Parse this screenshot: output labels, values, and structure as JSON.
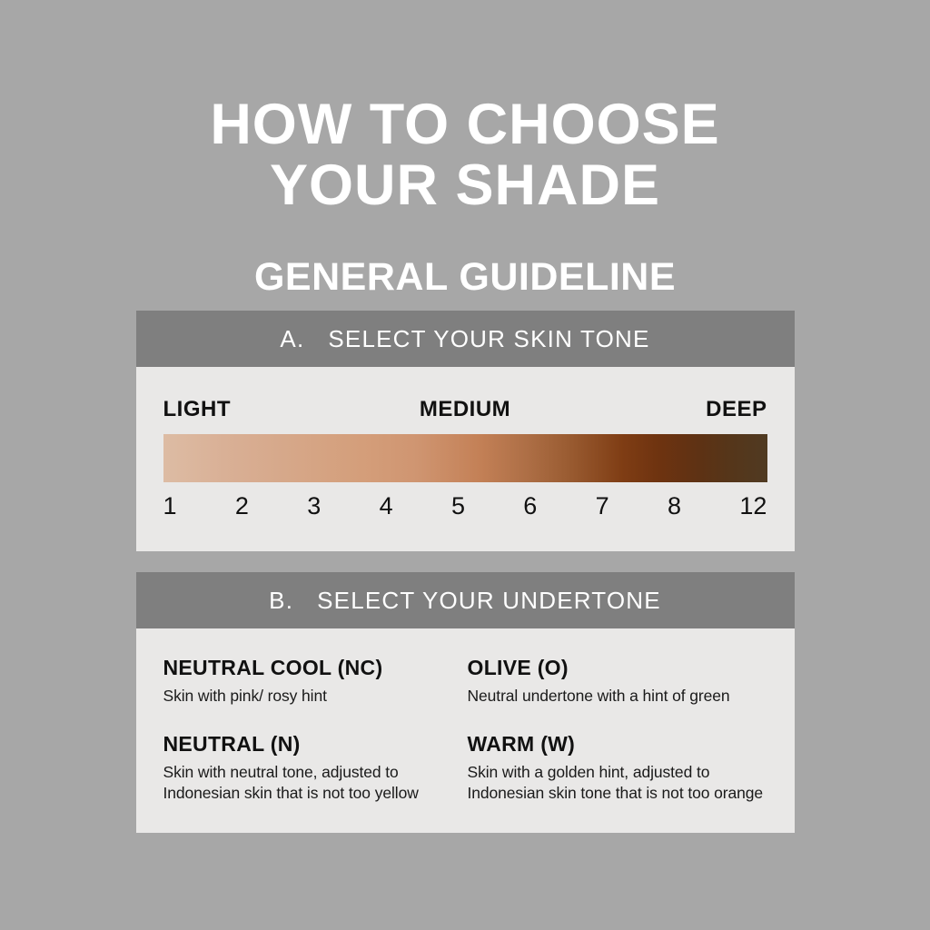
{
  "colors": {
    "bg": "#a7a7a7",
    "header_bg": "#7f7f7f",
    "panel_bg": "#e9e8e7",
    "text_light": "#ffffff",
    "text_dark": "#111111"
  },
  "title": {
    "line1": "HOW TO CHOOSE",
    "line2": "YOUR SHADE"
  },
  "subtitle": "GENERAL GUIDELINE",
  "section_a": {
    "prefix": "A.",
    "heading": "SELECT YOUR SKIN TONE",
    "tone_labels": [
      "LIGHT",
      "MEDIUM",
      "DEEP"
    ],
    "shade_numbers": [
      "1",
      "2",
      "3",
      "4",
      "5",
      "6",
      "7",
      "8",
      "12"
    ],
    "gradient_stops": [
      "#ddbca4 0%",
      "#d9b096 10%",
      "#d6a88a 20%",
      "#d49e7a 33%",
      "#cf9571 42%",
      "#c48157 52%",
      "#ae6f46 60%",
      "#9a5c32 67%",
      "#7f3d14 76%",
      "#6e3310 82%",
      "#5d3214 89%",
      "#55361a 94%",
      "#503a22 100%"
    ]
  },
  "section_b": {
    "prefix": "B.",
    "heading": "SELECT YOUR UNDERTONE",
    "undertones": [
      {
        "name": "NEUTRAL COOL (NC)",
        "description": "Skin with pink/ rosy hint"
      },
      {
        "name": "OLIVE (O)",
        "description": "Neutral undertone with a hint of green"
      },
      {
        "name": "NEUTRAL (N)",
        "description": "Skin with neutral tone, adjusted to\nIndonesian skin that is not too yellow"
      },
      {
        "name": "WARM (W)",
        "description": "Skin with a golden hint, adjusted to\nIndonesian skin tone that is not too orange"
      }
    ]
  }
}
